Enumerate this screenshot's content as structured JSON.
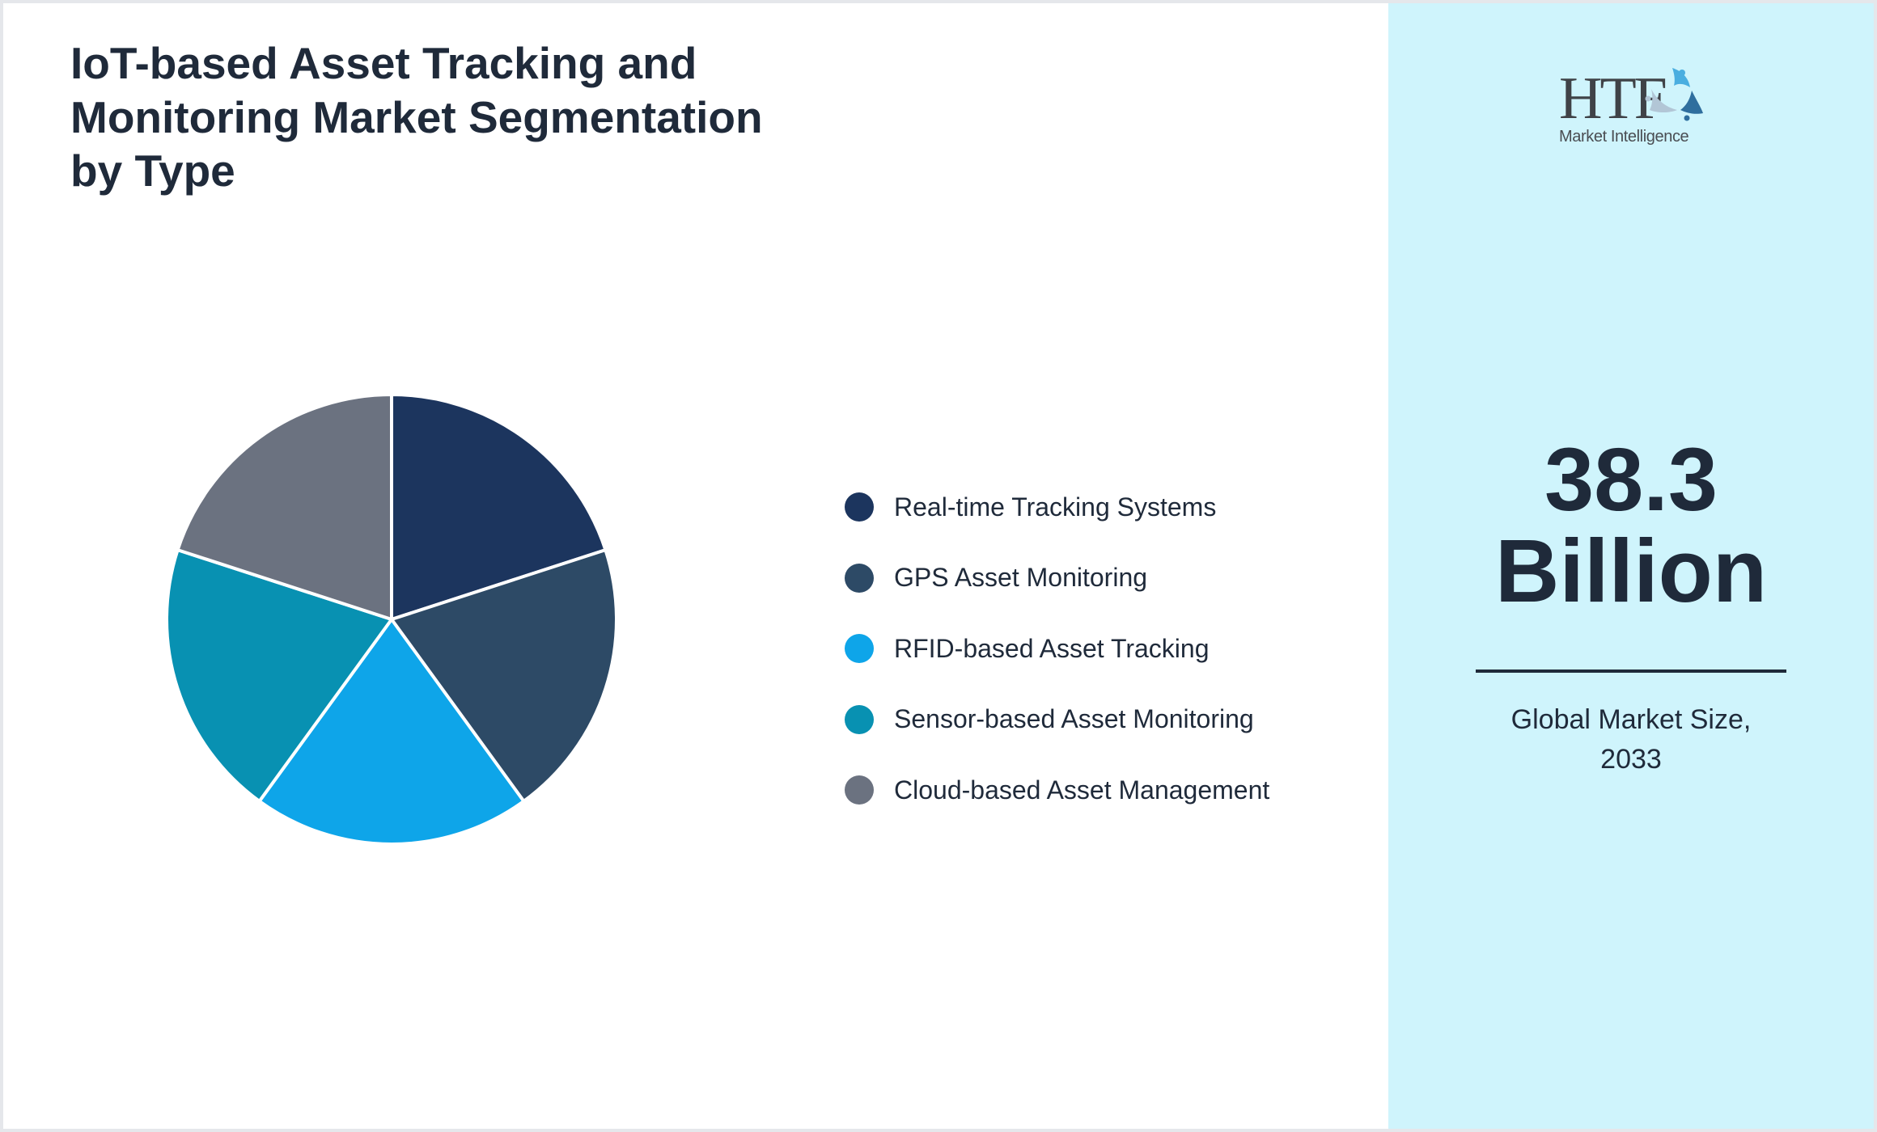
{
  "title": {
    "lines": [
      "IoT-based Asset Tracking and",
      "Monitoring Market Segmentation",
      "by Type"
    ],
    "full": "IoT-based Asset Tracking and Monitoring Market Segmentation by Type"
  },
  "chart_data": {
    "type": "pie",
    "title": "IoT-based Asset Tracking and Monitoring Market Segmentation by Type",
    "categories": [
      "Real-time Tracking Systems",
      "GPS Asset Monitoring",
      "RFID-based Asset Tracking",
      "Sensor-based Asset Monitoring",
      "Cloud-based Asset Management"
    ],
    "values": [
      20,
      20,
      20,
      20,
      20
    ],
    "colors": [
      "#1c355e",
      "#2d4a66",
      "#0ea5e9",
      "#0891b2",
      "#6b7280"
    ],
    "start_angle_deg": -90,
    "direction": "clockwise",
    "legend_position": "right",
    "data_labels": false
  },
  "legend": {
    "items": [
      {
        "label": "Real-time Tracking Systems",
        "color": "#1c355e"
      },
      {
        "label": "GPS Asset Monitoring",
        "color": "#2d4a66"
      },
      {
        "label": "RFID-based Asset Tracking",
        "color": "#0ea5e9"
      },
      {
        "label": "Sensor-based Asset Monitoring",
        "color": "#0891b2"
      },
      {
        "label": "Cloud-based Asset Management",
        "color": "#6b7280"
      }
    ]
  },
  "panel": {
    "logo": {
      "brand": "HTF",
      "subtitle": "Market Intelligence"
    },
    "value_lines": [
      "38.3",
      "Billion"
    ],
    "caption_lines": [
      "Global Market Size,",
      "2033"
    ]
  },
  "colors": {
    "panel_bg": "#cff4fc",
    "text": "#1f2a3a",
    "frame": "#e5e7eb"
  }
}
